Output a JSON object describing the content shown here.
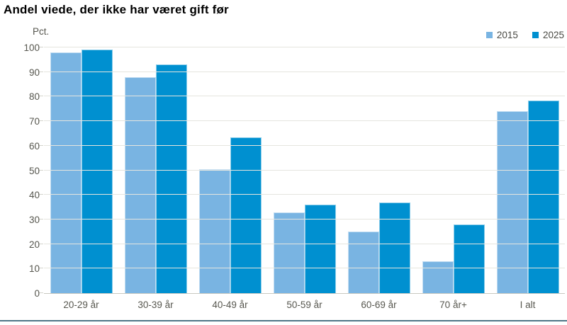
{
  "title": "Andel viede, der ikke har været gift før",
  "unit_label": "Pct.",
  "chart_data": {
    "type": "bar",
    "title": "Andel viede, der ikke har været gift før",
    "ylabel": "Pct.",
    "xlabel": "",
    "categories": [
      "20-29 år",
      "30-39 år",
      "40-49 år",
      "50-59 år",
      "60-69 år",
      "70 år+",
      "I alt"
    ],
    "series": [
      {
        "name": "2015",
        "color": "#79B4E2",
        "values": [
          98,
          88,
          50.5,
          33,
          25,
          13,
          74
        ]
      },
      {
        "name": "2025",
        "color": "#0090D0",
        "values": [
          99,
          93,
          63.5,
          36,
          37,
          28,
          78.5
        ]
      }
    ],
    "ylim": [
      0,
      100
    ],
    "yticks": [
      0,
      10,
      20,
      30,
      40,
      50,
      60,
      70,
      80,
      90,
      100
    ],
    "grid": true,
    "legend_position": "top-right"
  },
  "colors": {
    "series_2015": "#79B4E2",
    "series_2025": "#0090D0",
    "gridline": "#e5e5df",
    "axis_line": "#c9c9c1",
    "axis_text": "#57574f",
    "title_text": "#000000",
    "bottom_rule": "#4f7587"
  }
}
